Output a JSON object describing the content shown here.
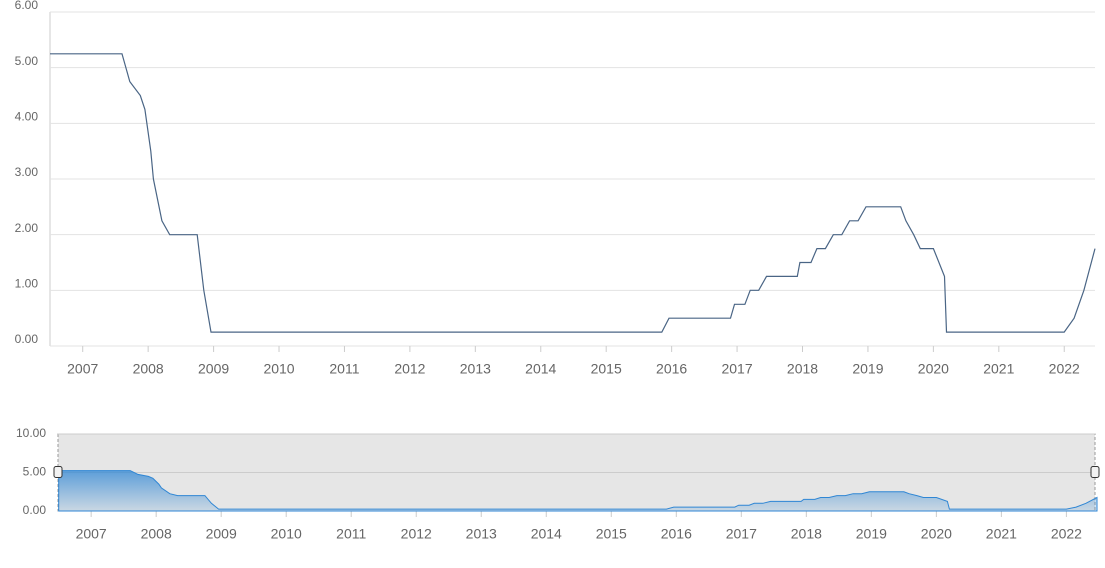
{
  "chart_data": {
    "type": "line",
    "x": [
      2006.5,
      2007.6,
      2007.72,
      2007.88,
      2007.95,
      2008.04,
      2008.08,
      2008.21,
      2008.33,
      2008.75,
      2008.85,
      2008.96,
      2015.85,
      2015.96,
      2016.9,
      2016.96,
      2017.12,
      2017.2,
      2017.33,
      2017.45,
      2017.92,
      2017.96,
      2018.13,
      2018.22,
      2018.35,
      2018.47,
      2018.6,
      2018.72,
      2018.85,
      2018.97,
      2019.5,
      2019.58,
      2019.7,
      2019.8,
      2020.0,
      2020.17,
      2020.2,
      2022.0,
      2022.15,
      2022.3,
      2022.47
    ],
    "series": [
      {
        "color": "#4a6585",
        "values": [
          5.25,
          5.25,
          4.75,
          4.5,
          4.25,
          3.5,
          3.0,
          2.25,
          2.0,
          2.0,
          1.0,
          0.25,
          0.25,
          0.5,
          0.5,
          0.75,
          0.75,
          1.0,
          1.0,
          1.25,
          1.25,
          1.5,
          1.5,
          1.75,
          1.75,
          2.0,
          2.0,
          2.25,
          2.25,
          2.5,
          2.5,
          2.25,
          2.0,
          1.75,
          1.75,
          1.25,
          0.25,
          0.25,
          0.5,
          1.0,
          1.75
        ]
      }
    ],
    "xlim": [
      2006.5,
      2022.47
    ],
    "xticks": [
      2007,
      2008,
      2009,
      2010,
      2011,
      2012,
      2013,
      2014,
      2015,
      2016,
      2017,
      2018,
      2019,
      2020,
      2021,
      2022
    ],
    "ylim": [
      0,
      6
    ],
    "yticks": [
      {
        "value": 0,
        "label": "0.00"
      },
      {
        "value": 1,
        "label": "1.00"
      },
      {
        "value": 2,
        "label": "2.00"
      },
      {
        "value": 3,
        "label": "3.00"
      },
      {
        "value": 4,
        "label": "4.00"
      },
      {
        "value": 5,
        "label": "5.00"
      },
      {
        "value": 6,
        "label": "6.00"
      }
    ],
    "grid": true,
    "navigator": {
      "type": "area",
      "color": "#2f86d4",
      "xlim": [
        2006.49,
        2022.44
      ],
      "ylim": [
        0,
        10
      ],
      "yticks": [
        {
          "value": 0,
          "label": "0.00"
        },
        {
          "value": 5,
          "label": "5.00"
        },
        {
          "value": 10,
          "label": "10.00"
        }
      ]
    }
  }
}
